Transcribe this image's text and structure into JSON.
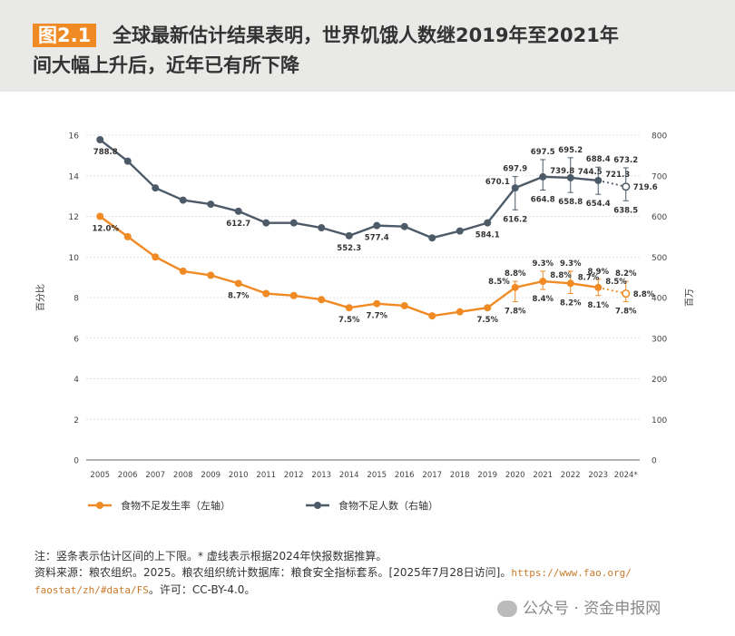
{
  "header": {
    "figure_tag": "图2.1",
    "title_line1": "全球最新估计结果表明，世界饥饿人数继2019年至2021年",
    "title_line2": "间大幅上升后，近年已有所下降"
  },
  "chart_data": {
    "type": "line",
    "x": [
      "2005",
      "2006",
      "2007",
      "2008",
      "2009",
      "2010",
      "2011",
      "2012",
      "2013",
      "2014",
      "2015",
      "2016",
      "2017",
      "2018",
      "2019",
      "2020",
      "2021",
      "2022",
      "2023",
      "2024*"
    ],
    "left_axis": {
      "label": "百分比",
      "ticks": [
        0,
        2,
        4,
        6,
        8,
        10,
        12,
        14,
        16
      ],
      "ylim": [
        0,
        16
      ]
    },
    "right_axis": {
      "label": "百万",
      "ticks": [
        0,
        100,
        200,
        300,
        400,
        500,
        600,
        700,
        800
      ],
      "ylim": [
        0,
        800
      ]
    },
    "series": [
      {
        "name": "食物不足发生率（左轴）",
        "axis": "left",
        "color": "#f08a24",
        "values": [
          12.0,
          11.0,
          10.0,
          9.3,
          9.1,
          8.7,
          8.2,
          8.1,
          7.9,
          7.5,
          7.7,
          7.6,
          7.1,
          7.3,
          7.5,
          8.5,
          8.8,
          8.7,
          8.5,
          8.2
        ],
        "upper": [
          null,
          null,
          null,
          null,
          null,
          null,
          null,
          null,
          null,
          null,
          null,
          null,
          null,
          null,
          null,
          8.8,
          9.3,
          9.3,
          8.9,
          8.8
        ],
        "lower": [
          null,
          null,
          null,
          null,
          null,
          null,
          null,
          null,
          null,
          null,
          null,
          null,
          null,
          null,
          null,
          7.8,
          8.4,
          8.2,
          8.1,
          7.8
        ],
        "labels": [
          {
            "i": 0,
            "text": "12.0%"
          },
          {
            "i": 5,
            "text": "8.7%"
          },
          {
            "i": 9,
            "text": "7.5%"
          },
          {
            "i": 10,
            "text": "7.7%"
          },
          {
            "i": 14,
            "text": "7.5%"
          },
          {
            "i": 15,
            "text": "8.5%"
          },
          {
            "i": 15,
            "text": "8.8%"
          },
          {
            "i": 15,
            "text": "7.8%"
          },
          {
            "i": 16,
            "text": "8.8%"
          },
          {
            "i": 16,
            "text": "9.3%"
          },
          {
            "i": 16,
            "text": "8.4%"
          },
          {
            "i": 17,
            "text": "8.7%"
          },
          {
            "i": 17,
            "text": "9.3%"
          },
          {
            "i": 17,
            "text": "8.2%"
          },
          {
            "i": 18,
            "text": "8.5%"
          },
          {
            "i": 18,
            "text": "8.9%"
          },
          {
            "i": 18,
            "text": "8.1%"
          },
          {
            "i": 19,
            "text": "8.8%"
          },
          {
            "i": 19,
            "text": "8.2%"
          },
          {
            "i": 19,
            "text": "7.8%"
          }
        ]
      },
      {
        "name": "食物不足人数（右轴）",
        "axis": "right",
        "color": "#4d5a68",
        "values": [
          788.8,
          736,
          670,
          640,
          630,
          612.7,
          584,
          584,
          572,
          552.3,
          577.4,
          575,
          547,
          564,
          584.1,
          670.1,
          697.5,
          695.2,
          688.4,
          673.2
        ],
        "upper": [
          null,
          null,
          null,
          null,
          null,
          null,
          null,
          null,
          null,
          null,
          null,
          null,
          null,
          null,
          null,
          697.9,
          739.8,
          744.5,
          721.3,
          719.6
        ],
        "lower": [
          null,
          null,
          null,
          null,
          null,
          null,
          null,
          null,
          null,
          null,
          null,
          null,
          null,
          null,
          null,
          616.2,
          664.8,
          658.8,
          654.4,
          638.5
        ],
        "labels": [
          {
            "i": 0,
            "text": "788.8"
          },
          {
            "i": 5,
            "text": "612.7"
          },
          {
            "i": 9,
            "text": "552.3"
          },
          {
            "i": 10,
            "text": "577.4"
          },
          {
            "i": 14,
            "text": "584.1"
          },
          {
            "i": 15,
            "text": "670.1"
          },
          {
            "i": 15,
            "text": "697.9"
          },
          {
            "i": 15,
            "text": "616.2"
          },
          {
            "i": 16,
            "text": "739.8"
          },
          {
            "i": 16,
            "text": "697.5"
          },
          {
            "i": 16,
            "text": "664.8"
          },
          {
            "i": 17,
            "text": "744.5"
          },
          {
            "i": 17,
            "text": "695.2"
          },
          {
            "i": 17,
            "text": "658.8"
          },
          {
            "i": 18,
            "text": "721.3"
          },
          {
            "i": 18,
            "text": "688.4"
          },
          {
            "i": 18,
            "text": "654.4"
          },
          {
            "i": 19,
            "text": "719.6"
          },
          {
            "i": 19,
            "text": "673.2"
          },
          {
            "i": 19,
            "text": "638.5"
          }
        ]
      }
    ],
    "grid": true,
    "legend": "bottom"
  },
  "notes": {
    "line1": "注：竖条表示估计区间的上下限。* 虚线表示根据2024年快报数据推算。",
    "line2_prefix": "资料来源：粮农组织。2025。粮农组织统计数据库：粮食安全指标套系。[2025年7月28日访问]。",
    "link_part1": "https://www.fao.org/",
    "link_part2": "faostat/zh/#data/FS",
    "license": "。许可：CC-BY-4.0。"
  },
  "watermark": "公众号 · 资金申报网"
}
